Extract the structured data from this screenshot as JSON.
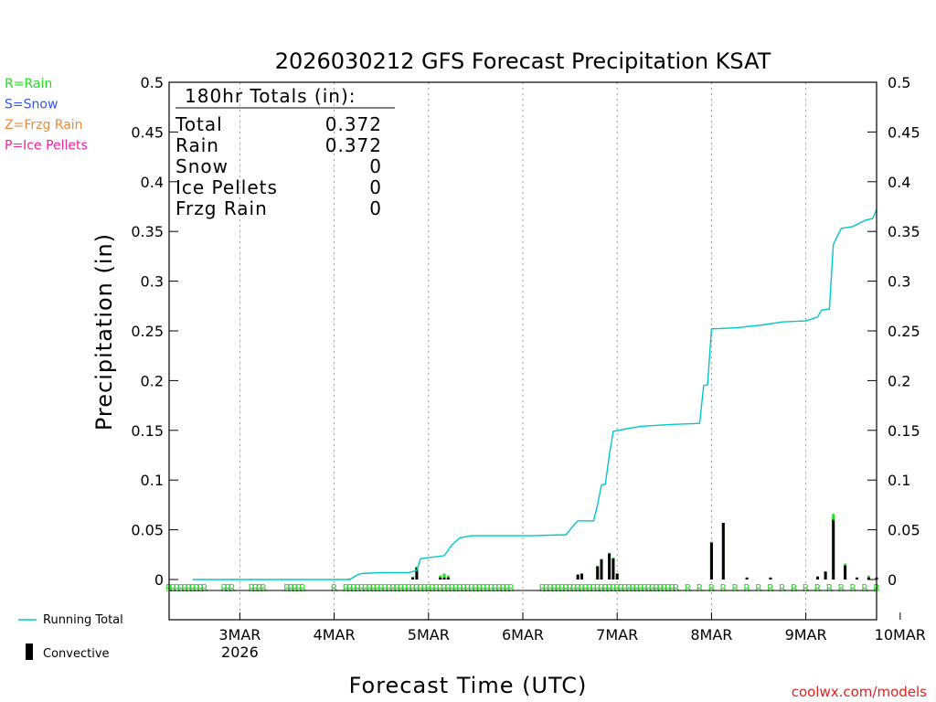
{
  "chart_data": {
    "type": "bar",
    "title": "2026030212 GFS Forecast Precipitation KSAT",
    "xlabel": "Forecast Time (UTC)",
    "ylabel": "Precipitation (in)",
    "ylim": [
      0,
      0.5
    ],
    "xlim_hours": [
      -6,
      174
    ],
    "y_ticks": [
      "0",
      "0.05",
      "0.1",
      "0.15",
      "0.2",
      "0.25",
      "0.3",
      "0.35",
      "0.4",
      "0.45",
      "0.5"
    ],
    "x_ticks": [
      {
        "label": "3MAR",
        "sublabel": "2026",
        "hour": 12
      },
      {
        "label": "4MAR",
        "hour": 36
      },
      {
        "label": "5MAR",
        "hour": 60
      },
      {
        "label": "6MAR",
        "hour": 84
      },
      {
        "label": "7MAR",
        "hour": 108
      },
      {
        "label": "8MAR",
        "hour": 132
      },
      {
        "label": "9MAR",
        "hour": 156
      },
      {
        "label": "10MAR",
        "hour": 180
      }
    ],
    "legend_types": [
      {
        "text": "R=Rain",
        "color": "#22dd22"
      },
      {
        "text": "S=Snow",
        "color": "#3355ee"
      },
      {
        "text": "Z=Frzg Rain",
        "color": "#ee8833"
      },
      {
        "text": "P=Ice Pellets",
        "color": "#ee2299"
      }
    ],
    "legend_series": [
      {
        "text": "Running Total",
        "color": "#00c8c8"
      },
      {
        "text": "Convective",
        "color": "#000000"
      }
    ],
    "totals": {
      "heading": "180hr Totals (in):",
      "rows": [
        {
          "label": "Total",
          "value": "0.372"
        },
        {
          "label": "Rain",
          "value": "0.372"
        },
        {
          "label": "Snow",
          "value": "0"
        },
        {
          "label": "Ice Pellets",
          "value": "0"
        },
        {
          "label": "Frzg Rain",
          "value": "0"
        }
      ]
    },
    "precip_type_marker": "R",
    "marker_color": "#22dd22",
    "running_total_color": "#00c8c8",
    "total_bar_color": "#22dd22",
    "convective_bar_color": "#000000",
    "running_total": [
      [
        0,
        0
      ],
      [
        40,
        0
      ],
      [
        42,
        0.005
      ],
      [
        43,
        0.006
      ],
      [
        48,
        0.007
      ],
      [
        55,
        0.007
      ],
      [
        57,
        0.009
      ],
      [
        58,
        0.021
      ],
      [
        60,
        0.022
      ],
      [
        64,
        0.024
      ],
      [
        66,
        0.035
      ],
      [
        68,
        0.042
      ],
      [
        71,
        0.044
      ],
      [
        86,
        0.044
      ],
      [
        95,
        0.045
      ],
      [
        97,
        0.055
      ],
      [
        98,
        0.059
      ],
      [
        102,
        0.059
      ],
      [
        103,
        0.075
      ],
      [
        104,
        0.095
      ],
      [
        105,
        0.096
      ],
      [
        106,
        0.125
      ],
      [
        107,
        0.149
      ],
      [
        111,
        0.152
      ],
      [
        114,
        0.154
      ],
      [
        122,
        0.156
      ],
      [
        129,
        0.157
      ],
      [
        130,
        0.195
      ],
      [
        131,
        0.196
      ],
      [
        132,
        0.252
      ],
      [
        138,
        0.253
      ],
      [
        145,
        0.256
      ],
      [
        150,
        0.259
      ],
      [
        156,
        0.26
      ],
      [
        159,
        0.264
      ],
      [
        160,
        0.271
      ],
      [
        162,
        0.272
      ],
      [
        163,
        0.337
      ],
      [
        165,
        0.353
      ],
      [
        168,
        0.355
      ],
      [
        171,
        0.361
      ],
      [
        173,
        0.363
      ],
      [
        174,
        0.372
      ]
    ],
    "bars": [
      {
        "hour": 40,
        "total": 0.001,
        "convective": 0.001
      },
      {
        "hour": 56,
        "total": 0.003,
        "convective": 0.002
      },
      {
        "hour": 57,
        "total": 0.013,
        "convective": 0.012
      },
      {
        "hour": 63,
        "total": 0.004,
        "convective": 0.002
      },
      {
        "hour": 64,
        "total": 0.006,
        "convective": 0.002
      },
      {
        "hour": 65,
        "total": 0.004,
        "convective": 0.002
      },
      {
        "hour": 98,
        "total": 0.005,
        "convective": 0.005
      },
      {
        "hour": 99,
        "total": 0.006,
        "convective": 0.006
      },
      {
        "hour": 103,
        "total": 0.014,
        "convective": 0.013
      },
      {
        "hour": 104,
        "total": 0.021,
        "convective": 0.02
      },
      {
        "hour": 106,
        "total": 0.027,
        "convective": 0.026
      },
      {
        "hour": 107,
        "total": 0.022,
        "convective": 0.021
      },
      {
        "hour": 108,
        "total": 0.006,
        "convective": 0.006
      },
      {
        "hour": 132,
        "total": 0.038,
        "convective": 0.037
      },
      {
        "hour": 135,
        "total": 0.057,
        "convective": 0.057
      },
      {
        "hour": 141,
        "total": 0.002,
        "convective": 0.002
      },
      {
        "hour": 147,
        "total": 0.002,
        "convective": 0.002
      },
      {
        "hour": 159,
        "total": 0.003,
        "convective": 0.003
      },
      {
        "hour": 161,
        "total": 0.008,
        "convective": 0.008
      },
      {
        "hour": 163,
        "total": 0.066,
        "convective": 0.06
      },
      {
        "hour": 166,
        "total": 0.016,
        "convective": 0.014
      },
      {
        "hour": 169,
        "total": 0.002,
        "convective": 0.002
      },
      {
        "hour": 172,
        "total": 0.004,
        "convective": 0.002
      },
      {
        "hour": 174,
        "total": 0.002,
        "convective": 0.002
      }
    ],
    "markers_hourly": [
      -6,
      123
    ],
    "markers_3hr": [
      126,
      174
    ],
    "marker_gaps_hourly": [
      [
        4,
        5
      ],
      [
        6,
        7
      ],
      [
        11,
        12
      ],
      [
        13,
        14
      ],
      [
        19,
        20
      ],
      [
        20,
        21
      ],
      [
        22,
        23
      ],
      [
        29,
        30
      ],
      [
        30,
        31
      ],
      [
        32,
        33
      ],
      [
        34,
        35
      ],
      [
        37,
        38
      ],
      [
        82,
        83
      ],
      [
        84,
        85
      ],
      [
        85,
        86
      ],
      [
        87,
        88
      ]
    ]
  },
  "credit": "coolwx.com/models"
}
